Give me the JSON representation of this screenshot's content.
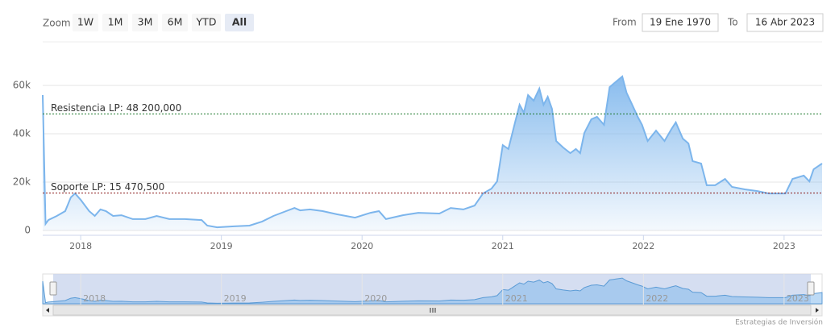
{
  "chart_data": {
    "type": "area",
    "range_selector": {
      "label": "Zoom",
      "buttons": [
        "1W",
        "1M",
        "3M",
        "6M",
        "YTD",
        "All"
      ],
      "selected": 5,
      "from_label": "From",
      "from": "19 Ene 1970",
      "to_label": "To",
      "to": "16 Abr 2023"
    },
    "x": [
      2017.73,
      2017.75,
      2017.77,
      2017.83,
      2017.89,
      2017.93,
      2017.96,
      2018.0,
      2018.06,
      2018.1,
      2018.14,
      2018.18,
      2018.23,
      2018.29,
      2018.37,
      2018.46,
      2018.54,
      2018.63,
      2018.74,
      2018.86,
      2018.9,
      2018.97,
      2019.09,
      2019.2,
      2019.29,
      2019.37,
      2019.46,
      2019.52,
      2019.56,
      2019.63,
      2019.72,
      2019.82,
      2019.95,
      2020.06,
      2020.12,
      2020.17,
      2020.29,
      2020.4,
      2020.55,
      2020.63,
      2020.72,
      2020.8,
      2020.86,
      2020.92,
      2020.96,
      2021.0,
      2021.04,
      2021.09,
      2021.12,
      2021.15,
      2021.18,
      2021.22,
      2021.26,
      2021.29,
      2021.32,
      2021.35,
      2021.38,
      2021.43,
      2021.48,
      2021.52,
      2021.55,
      2021.58,
      2021.63,
      2021.67,
      2021.72,
      2021.76,
      2021.8,
      2021.85,
      2021.88,
      2021.92,
      2021.96,
      2021.99,
      2022.03,
      2022.09,
      2022.15,
      2022.2,
      2022.23,
      2022.28,
      2022.32,
      2022.35,
      2022.41,
      2022.45,
      2022.51,
      2022.58,
      2022.63,
      2022.72,
      2022.81,
      2022.89,
      2022.95,
      2023.01,
      2023.06,
      2023.14,
      2023.18,
      2023.21,
      2023.27
    ],
    "series": [
      {
        "color": "#7cb5ec",
        "values": [
          56000,
          2700,
          4300,
          6000,
          8000,
          13700,
          15300,
          12700,
          8000,
          6000,
          8700,
          8000,
          6000,
          6300,
          4700,
          4700,
          6000,
          4700,
          4700,
          4300,
          2000,
          1300,
          1700,
          2000,
          3700,
          6000,
          8000,
          9300,
          8300,
          8700,
          8000,
          6700,
          5300,
          7300,
          8000,
          4700,
          6300,
          7300,
          7000,
          9300,
          8700,
          10300,
          15300,
          17300,
          20300,
          35300,
          33700,
          45300,
          52000,
          48700,
          56000,
          53700,
          58700,
          52000,
          55300,
          50300,
          37000,
          34300,
          32000,
          33700,
          32000,
          40300,
          46000,
          47000,
          43700,
          59300,
          61300,
          63700,
          57000,
          52000,
          47000,
          43700,
          37000,
          41300,
          37000,
          42000,
          44700,
          38000,
          36000,
          28700,
          27700,
          18700,
          18700,
          21300,
          18000,
          17000,
          16300,
          15300,
          15300,
          15300,
          21300,
          22700,
          20300,
          25300,
          27700
        ]
      }
    ],
    "xlim": [
      2017.73,
      2023.27
    ],
    "xticks": [
      2018,
      2019,
      2020,
      2021,
      2022,
      2023
    ],
    "ylim": [
      0,
      75000
    ],
    "yticks": [
      0,
      {
        "value": 20000,
        "label": "20k"
      },
      {
        "value": 40000,
        "label": "40k"
      },
      {
        "value": 60000,
        "label": "60k"
      }
    ],
    "grid": true,
    "plot_lines": [
      {
        "value": 48200,
        "label": "Resistencia LP: 48 200,000",
        "color": "#1f7a2e"
      },
      {
        "value": 15470.5,
        "label": "Soporte LP: 15 470,500",
        "color": "#8b1a1a"
      }
    ],
    "navigator_ylim": [
      0,
      70000
    ],
    "credits": "Estrategias de Inversión"
  }
}
